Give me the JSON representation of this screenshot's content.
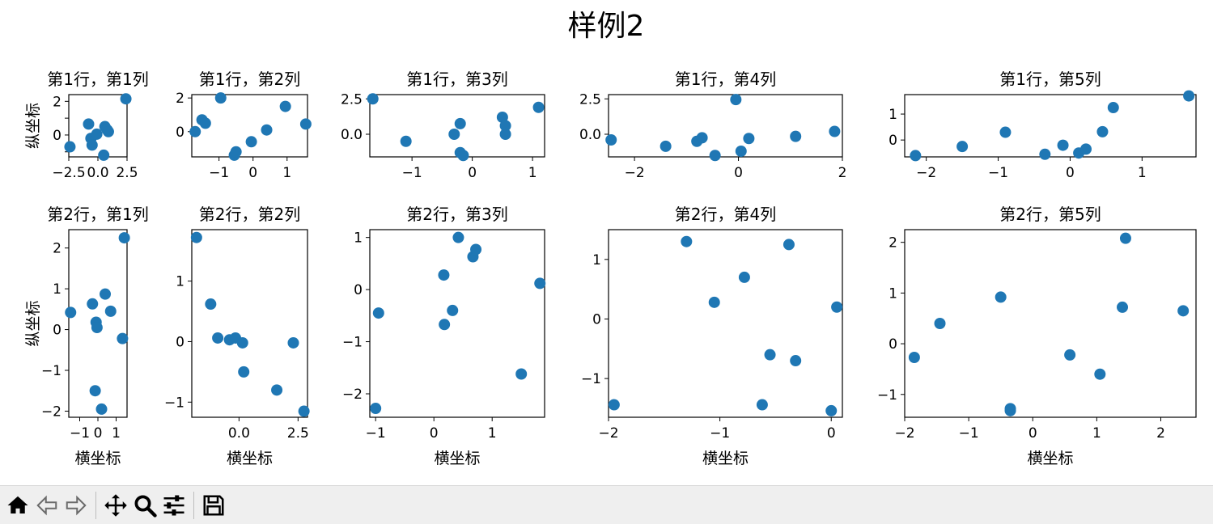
{
  "figure": {
    "suptitle": "样例2",
    "xlabel": "横坐标",
    "ylabel": "纵坐标",
    "marker_color": "#1f77b4"
  },
  "chart_data": [
    {
      "type": "scatter",
      "title": "第1行，第1列",
      "xlim": [
        -2.5,
        2.5
      ],
      "ylim": [
        -1.3,
        2.4
      ],
      "xticks": [
        -2.5,
        0,
        2.5
      ],
      "xtick_labels": [
        "−2.5",
        "0.0",
        "2.5"
      ],
      "yticks": [
        -1,
        0,
        1,
        2
      ],
      "ytick_labels": [
        "",
        "0",
        "",
        "2"
      ],
      "x": [
        -2.4,
        -0.8,
        -0.6,
        -0.5,
        -0.1,
        0.5,
        0.6,
        0.8,
        0.9,
        2.4
      ],
      "y": [
        -0.7,
        0.65,
        -0.2,
        -0.6,
        0.05,
        -1.2,
        0.5,
        0.3,
        0.2,
        2.15
      ],
      "show_ylabel": true,
      "show_xlabel": false
    },
    {
      "type": "scatter",
      "title": "第1行，第2列",
      "xlim": [
        -1.8,
        1.6
      ],
      "ylim": [
        -1.5,
        2.2
      ],
      "xticks": [
        -1,
        0,
        1
      ],
      "xtick_labels": [
        "−1",
        "0",
        "1"
      ],
      "yticks": [
        0,
        2
      ],
      "ytick_labels": [
        "0",
        "2"
      ],
      "x": [
        -1.7,
        -1.5,
        -1.4,
        -0.95,
        -0.55,
        -0.5,
        -0.05,
        0.4,
        0.95,
        1.55
      ],
      "y": [
        0.0,
        0.7,
        0.5,
        2.0,
        -1.4,
        -1.2,
        -0.6,
        0.1,
        1.5,
        0.45
      ],
      "show_ylabel": false,
      "show_xlabel": false
    },
    {
      "type": "scatter",
      "title": "第1行，第3列",
      "xlim": [
        -1.7,
        1.2
      ],
      "ylim": [
        -1.6,
        2.8
      ],
      "xticks": [
        -1,
        0,
        1
      ],
      "xtick_labels": [
        "−1",
        "0",
        "1"
      ],
      "yticks": [
        0,
        2.5
      ],
      "ytick_labels": [
        "0.0",
        "2.5"
      ],
      "x": [
        -1.65,
        -1.1,
        -0.3,
        -0.2,
        -0.2,
        -0.15,
        0.5,
        0.55,
        0.55,
        1.1
      ],
      "y": [
        2.5,
        -0.5,
        0.0,
        0.75,
        -1.3,
        -1.5,
        1.2,
        0.6,
        0.0,
        1.9
      ],
      "show_ylabel": false,
      "show_xlabel": false
    },
    {
      "type": "scatter",
      "title": "第1行，第4列",
      "xlim": [
        -2.5,
        2.0
      ],
      "ylim": [
        -1.6,
        2.8
      ],
      "xticks": [
        -2,
        0,
        2
      ],
      "xtick_labels": [
        "−2",
        "0",
        "2"
      ],
      "yticks": [
        0,
        2.5
      ],
      "ytick_labels": [
        "0.0",
        "2.5"
      ],
      "x": [
        -2.45,
        -1.4,
        -0.8,
        -0.7,
        -0.45,
        -0.05,
        0.05,
        0.2,
        1.1,
        1.85
      ],
      "y": [
        -0.4,
        -0.85,
        -0.5,
        -0.25,
        -1.5,
        2.45,
        -1.2,
        -0.3,
        -0.15,
        0.2
      ],
      "show_ylabel": false,
      "show_xlabel": false
    },
    {
      "type": "scatter",
      "title": "第1行，第5列",
      "xlim": [
        -2.3,
        1.75
      ],
      "ylim": [
        -0.65,
        1.75
      ],
      "xticks": [
        -2,
        -1,
        0,
        1
      ],
      "xtick_labels": [
        "−2",
        "−1",
        "0",
        "1"
      ],
      "yticks": [
        0,
        1
      ],
      "ytick_labels": [
        "0",
        "1"
      ],
      "x": [
        -2.15,
        -1.5,
        -0.9,
        -0.35,
        -0.1,
        0.12,
        0.22,
        0.45,
        0.6,
        1.65
      ],
      "y": [
        -0.6,
        -0.25,
        0.3,
        -0.55,
        -0.2,
        -0.5,
        -0.35,
        0.32,
        1.25,
        1.7
      ],
      "show_ylabel": false,
      "show_xlabel": false
    },
    {
      "type": "scatter",
      "title": "第2行，第1列",
      "xlim": [
        -1.6,
        1.6
      ],
      "ylim": [
        -2.15,
        2.45
      ],
      "xticks": [
        -1,
        0,
        1
      ],
      "xtick_labels": [
        "−1",
        "0",
        "1"
      ],
      "yticks": [
        -2,
        -1,
        0,
        1,
        2
      ],
      "ytick_labels": [
        "−2",
        "−1",
        "0",
        "1",
        "2"
      ],
      "x": [
        -1.5,
        -0.3,
        -0.15,
        -0.1,
        -0.05,
        0.2,
        0.4,
        0.7,
        1.35,
        1.45
      ],
      "y": [
        0.42,
        0.63,
        -1.5,
        0.18,
        0.05,
        -1.95,
        0.87,
        0.45,
        -0.22,
        2.25
      ],
      "show_ylabel": true,
      "show_xlabel": true
    },
    {
      "type": "scatter",
      "title": "第2行，第2列",
      "xlim": [
        -2.0,
        2.9
      ],
      "ylim": [
        -1.25,
        1.85
      ],
      "xticks": [
        0,
        2.5
      ],
      "xtick_labels": [
        "0.0",
        "2.5"
      ],
      "yticks": [
        -1,
        0,
        1
      ],
      "ytick_labels": [
        "−1",
        "0",
        "1"
      ],
      "x": [
        -1.8,
        -1.2,
        -0.9,
        -0.4,
        -0.15,
        0.15,
        0.2,
        1.6,
        2.3,
        2.75
      ],
      "y": [
        1.72,
        0.62,
        0.06,
        0.03,
        0.06,
        -0.02,
        -0.5,
        -0.8,
        -0.02,
        -1.15
      ],
      "show_ylabel": false,
      "show_xlabel": true
    },
    {
      "type": "scatter",
      "title": "第2行，第3列",
      "xlim": [
        -1.1,
        1.9
      ],
      "ylim": [
        -2.45,
        1.15
      ],
      "xticks": [
        -1,
        0,
        1
      ],
      "xtick_labels": [
        "−1",
        "0",
        "1"
      ],
      "yticks": [
        -2,
        -1,
        0,
        1
      ],
      "ytick_labels": [
        "−2",
        "−1",
        "0",
        "1"
      ],
      "x": [
        -1.0,
        -0.95,
        0.17,
        0.18,
        0.32,
        0.42,
        0.67,
        0.72,
        1.5,
        1.82
      ],
      "y": [
        -2.28,
        -0.45,
        0.28,
        -0.67,
        -0.4,
        1.0,
        0.63,
        0.77,
        -1.62,
        0.12
      ],
      "show_ylabel": false,
      "show_xlabel": true
    },
    {
      "type": "scatter",
      "title": "第2行，第4列",
      "xlim": [
        -2.0,
        0.1
      ],
      "ylim": [
        -1.65,
        1.5
      ],
      "xticks": [
        -2,
        -1,
        0
      ],
      "xtick_labels": [
        "−2",
        "−1",
        "0"
      ],
      "yticks": [
        -1,
        0,
        1
      ],
      "ytick_labels": [
        "−1",
        "0",
        "1"
      ],
      "x": [
        -1.95,
        -1.3,
        -1.05,
        -0.78,
        -0.62,
        -0.55,
        -0.38,
        -0.32,
        0.0,
        0.05
      ],
      "y": [
        -1.44,
        1.3,
        0.28,
        0.7,
        -1.44,
        -0.6,
        1.25,
        -0.7,
        -1.54,
        0.2
      ],
      "show_ylabel": false,
      "show_xlabel": true
    },
    {
      "type": "scatter",
      "title": "第2行，第5列",
      "xlim": [
        -2.0,
        2.55
      ],
      "ylim": [
        -1.45,
        2.25
      ],
      "xticks": [
        -2,
        -1,
        0,
        1,
        2
      ],
      "xtick_labels": [
        "−2",
        "−1",
        "0",
        "1",
        "2"
      ],
      "yticks": [
        -1,
        0,
        1,
        2
      ],
      "ytick_labels": [
        "−1",
        "0",
        "1",
        "2"
      ],
      "x": [
        -1.85,
        -1.45,
        -0.5,
        -0.35,
        -0.35,
        0.58,
        1.05,
        1.4,
        1.45,
        2.35
      ],
      "y": [
        -0.27,
        0.4,
        0.92,
        -1.28,
        -1.32,
        -0.22,
        -0.6,
        0.72,
        2.08,
        0.65
      ],
      "show_ylabel": false,
      "show_xlabel": true
    }
  ],
  "toolbar": {
    "icons": [
      "home-icon",
      "back-icon",
      "forward-icon",
      "pan-icon",
      "zoom-icon",
      "configure-icon",
      "save-icon"
    ]
  }
}
